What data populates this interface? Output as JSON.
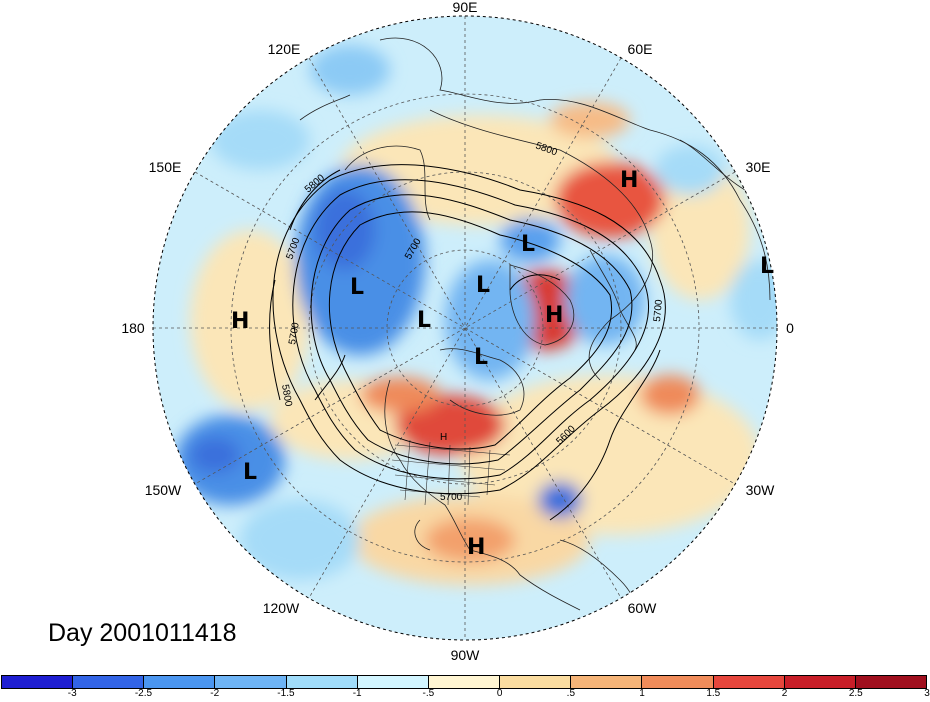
{
  "title": "Day 2001011418",
  "longitude_labels": {
    "top": "90E",
    "top_left": "120E",
    "top_right": "60E",
    "upper_left": "150E",
    "upper_right": "30E",
    "left": "180",
    "right": "0",
    "lower_left": "150W",
    "lower_right": "30W",
    "bottom_left": "120W",
    "bottom_right": "60W",
    "bottom": "90W"
  },
  "contour_labels": [
    "5800",
    "5800",
    "5700",
    "5700",
    "5700",
    "5800",
    "5700",
    "5600",
    "5700"
  ],
  "pressure_centers": [
    {
      "type": "H",
      "name": "high-europe"
    },
    {
      "type": "L",
      "name": "low-eastern-europe"
    },
    {
      "type": "L",
      "name": "low-siberia"
    },
    {
      "type": "L",
      "name": "low-east-asia"
    },
    {
      "type": "L",
      "name": "low-north-pacific"
    },
    {
      "type": "L",
      "name": "low-arctic-north"
    },
    {
      "type": "H",
      "name": "high-greenland"
    },
    {
      "type": "L",
      "name": "low-arctic-canada"
    },
    {
      "type": "H",
      "name": "high-dateline"
    },
    {
      "type": "L",
      "name": "low-subtropical-pacific"
    },
    {
      "type": "H",
      "name": "high-mexico"
    },
    {
      "type": "H",
      "name": "high-eastern-us"
    }
  ],
  "colorbar": {
    "colors": [
      "#1e1ed2",
      "#3264e6",
      "#4b96f0",
      "#6eb4f5",
      "#a0dcfa",
      "#d2f5ff",
      "#fff5d2",
      "#fadca0",
      "#f5b478",
      "#f08c5a",
      "#e6463c",
      "#c81e28",
      "#a00f1e"
    ],
    "labels": [
      "-3",
      "-2.5",
      "-2",
      "-1.5",
      "-1",
      "-.5",
      "0",
      ".5",
      "1",
      "1.5",
      "2",
      "2.5",
      "3"
    ]
  },
  "colors": {
    "ocean_base": "#cdeefb",
    "land_lines": "#222222",
    "contour": "#000000"
  }
}
